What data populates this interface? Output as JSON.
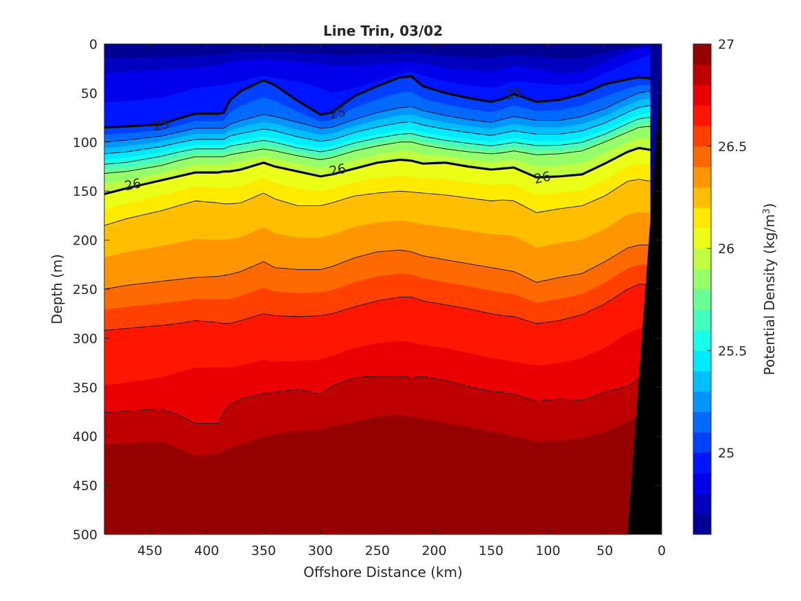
{
  "chart_data": {
    "type": "contour",
    "title": "Line Trin, 03/02",
    "xlabel": "Offshore Distance (km)",
    "ylabel": "Depth (m)",
    "colorbar_label": "Potential Density (kg/m",
    "colorbar_label_superscript": "3",
    "colorbar_label_close": ")",
    "xlim": [
      490,
      0
    ],
    "x_reversed": true,
    "ylim": [
      0,
      500
    ],
    "y_reversed": true,
    "clim": [
      24.6,
      27
    ],
    "x_ticks": [
      "450",
      "400",
      "350",
      "300",
      "250",
      "200",
      "150",
      "100",
      "50",
      "0"
    ],
    "y_ticks": [
      "0",
      "50",
      "100",
      "150",
      "200",
      "250",
      "300",
      "350",
      "400",
      "450",
      "500"
    ],
    "colorbar_ticks": [
      "25",
      "25.5",
      "26",
      "26.5",
      "27"
    ],
    "contour_interval": 0.1,
    "labeled_contours": [
      {
        "level": 25,
        "labels": [
          {
            "text": "25",
            "x": 440,
            "y": 82
          },
          {
            "text": "25",
            "x": 285,
            "y": 70
          },
          {
            "text": "25",
            "x": 130,
            "y": 50
          }
        ]
      },
      {
        "level": 26,
        "labels": [
          {
            "text": "26",
            "x": 465,
            "y": 143
          },
          {
            "text": "26",
            "x": 285,
            "y": 128
          },
          {
            "text": "26",
            "x": 105,
            "y": 136
          }
        ]
      }
    ],
    "isopycnal_depths": {
      "x": [
        490,
        470,
        440,
        425,
        410,
        390,
        385,
        380,
        370,
        350,
        340,
        320,
        300,
        290,
        270,
        250,
        230,
        220,
        210,
        190,
        170,
        150,
        140,
        130,
        110,
        90,
        70,
        50,
        30,
        20,
        10
      ],
      "levels": [
        {
          "level": 24.8,
          "depths": [
            30,
            28,
            26,
            25,
            24,
            22,
            20,
            18,
            17,
            15,
            16,
            18,
            20,
            22,
            22,
            20,
            18,
            18,
            20,
            24,
            26,
            28,
            25,
            22,
            25,
            30,
            28,
            18,
            8,
            4,
            2
          ]
        },
        {
          "level": 24.9,
          "depths": [
            60,
            58,
            55,
            50,
            45,
            42,
            42,
            40,
            38,
            32,
            35,
            38,
            45,
            50,
            45,
            38,
            30,
            28,
            32,
            38,
            42,
            45,
            42,
            38,
            40,
            42,
            40,
            30,
            20,
            15,
            10
          ]
        },
        {
          "level": 25.0,
          "depths": [
            85,
            84,
            82,
            76,
            71,
            71,
            70,
            58,
            48,
            37,
            42,
            58,
            72,
            70,
            53,
            43,
            34,
            33,
            43,
            50,
            55,
            59,
            56,
            51,
            59,
            57,
            51,
            41,
            36,
            34,
            35
          ]
        },
        {
          "level": 25.2,
          "depths": [
            100,
            98,
            94,
            90,
            86,
            86,
            86,
            82,
            78,
            72,
            74,
            80,
            86,
            85,
            77,
            70,
            65,
            64,
            68,
            73,
            77,
            80,
            77,
            74,
            78,
            78,
            74,
            66,
            55,
            50,
            48
          ]
        },
        {
          "level": 25.5,
          "depths": [
            118,
            116,
            110,
            106,
            103,
            103,
            103,
            100,
            98,
            94,
            96,
            102,
            106,
            104,
            97,
            92,
            88,
            87,
            90,
            94,
            97,
            100,
            98,
            96,
            99,
            99,
            96,
            88,
            77,
            72,
            70
          ]
        },
        {
          "level": 25.8,
          "depths": [
            132,
            130,
            124,
            119,
            115,
            115,
            115,
            113,
            111,
            107,
            109,
            114,
            118,
            116,
            109,
            104,
            100,
            100,
            103,
            107,
            110,
            112,
            111,
            109,
            113,
            112,
            109,
            100,
            90,
            85,
            84
          ]
        },
        {
          "level": 26.0,
          "depths": [
            153,
            147,
            139,
            135,
            131,
            131,
            130,
            130,
            128,
            121,
            125,
            130,
            135,
            133,
            127,
            121,
            118,
            119,
            122,
            121,
            125,
            128,
            127,
            126,
            136,
            135,
            133,
            122,
            110,
            106,
            108
          ]
        },
        {
          "level": 26.2,
          "depths": [
            185,
            178,
            170,
            165,
            160,
            162,
            163,
            163,
            162,
            152,
            158,
            165,
            165,
            162,
            155,
            152,
            150,
            151,
            152,
            154,
            157,
            160,
            159,
            160,
            172,
            168,
            165,
            155,
            140,
            138,
            140
          ]
        },
        {
          "level": 26.4,
          "depths": [
            250,
            246,
            242,
            240,
            238,
            237,
            236,
            235,
            232,
            222,
            228,
            230,
            230,
            227,
            218,
            212,
            210,
            212,
            216,
            220,
            224,
            228,
            230,
            232,
            243,
            238,
            234,
            222,
            208,
            205,
            205
          ]
        },
        {
          "level": 26.6,
          "depths": [
            292,
            290,
            287,
            285,
            282,
            284,
            285,
            285,
            282,
            275,
            277,
            278,
            277,
            275,
            268,
            262,
            258,
            258,
            262,
            266,
            270,
            275,
            277,
            278,
            285,
            282,
            276,
            265,
            250,
            245,
            245
          ]
        },
        {
          "level": 26.7,
          "depths": [
            348,
            345,
            340,
            335,
            330,
            330,
            330,
            330,
            328,
            322,
            324,
            323,
            322,
            318,
            310,
            305,
            303,
            304,
            307,
            310,
            315,
            320,
            322,
            324,
            328,
            325,
            320,
            310,
            295,
            290,
            290
          ]
        },
        {
          "level": 26.8,
          "depths": [
            376,
            374,
            372,
            378,
            387,
            387,
            375,
            368,
            362,
            356,
            355,
            352,
            357,
            349,
            340,
            339,
            339,
            340,
            339,
            343,
            349,
            354,
            355,
            357,
            364,
            362,
            363,
            355,
            349,
            340,
            335
          ]
        },
        {
          "level": 26.9,
          "depths": [
            408,
            407,
            405,
            412,
            420,
            418,
            415,
            412,
            408,
            400,
            398,
            394,
            393,
            390,
            385,
            380,
            378,
            380,
            382,
            386,
            390,
            395,
            397,
            400,
            405,
            404,
            402,
            395,
            385,
            378,
            375
          ]
        },
        {
          "level": 27.0,
          "depths": [
            485,
            482,
            485,
            492,
            500,
            497,
            492,
            488,
            480,
            470,
            468,
            466,
            463,
            458,
            450,
            446,
            445,
            447,
            450,
            455,
            460,
            465,
            468,
            470,
            478,
            476,
            478,
            472,
            465,
            460,
            458
          ]
        }
      ]
    },
    "seafloor": {
      "x_bottom": 30,
      "x_top": 0,
      "depth_top": 20
    }
  }
}
